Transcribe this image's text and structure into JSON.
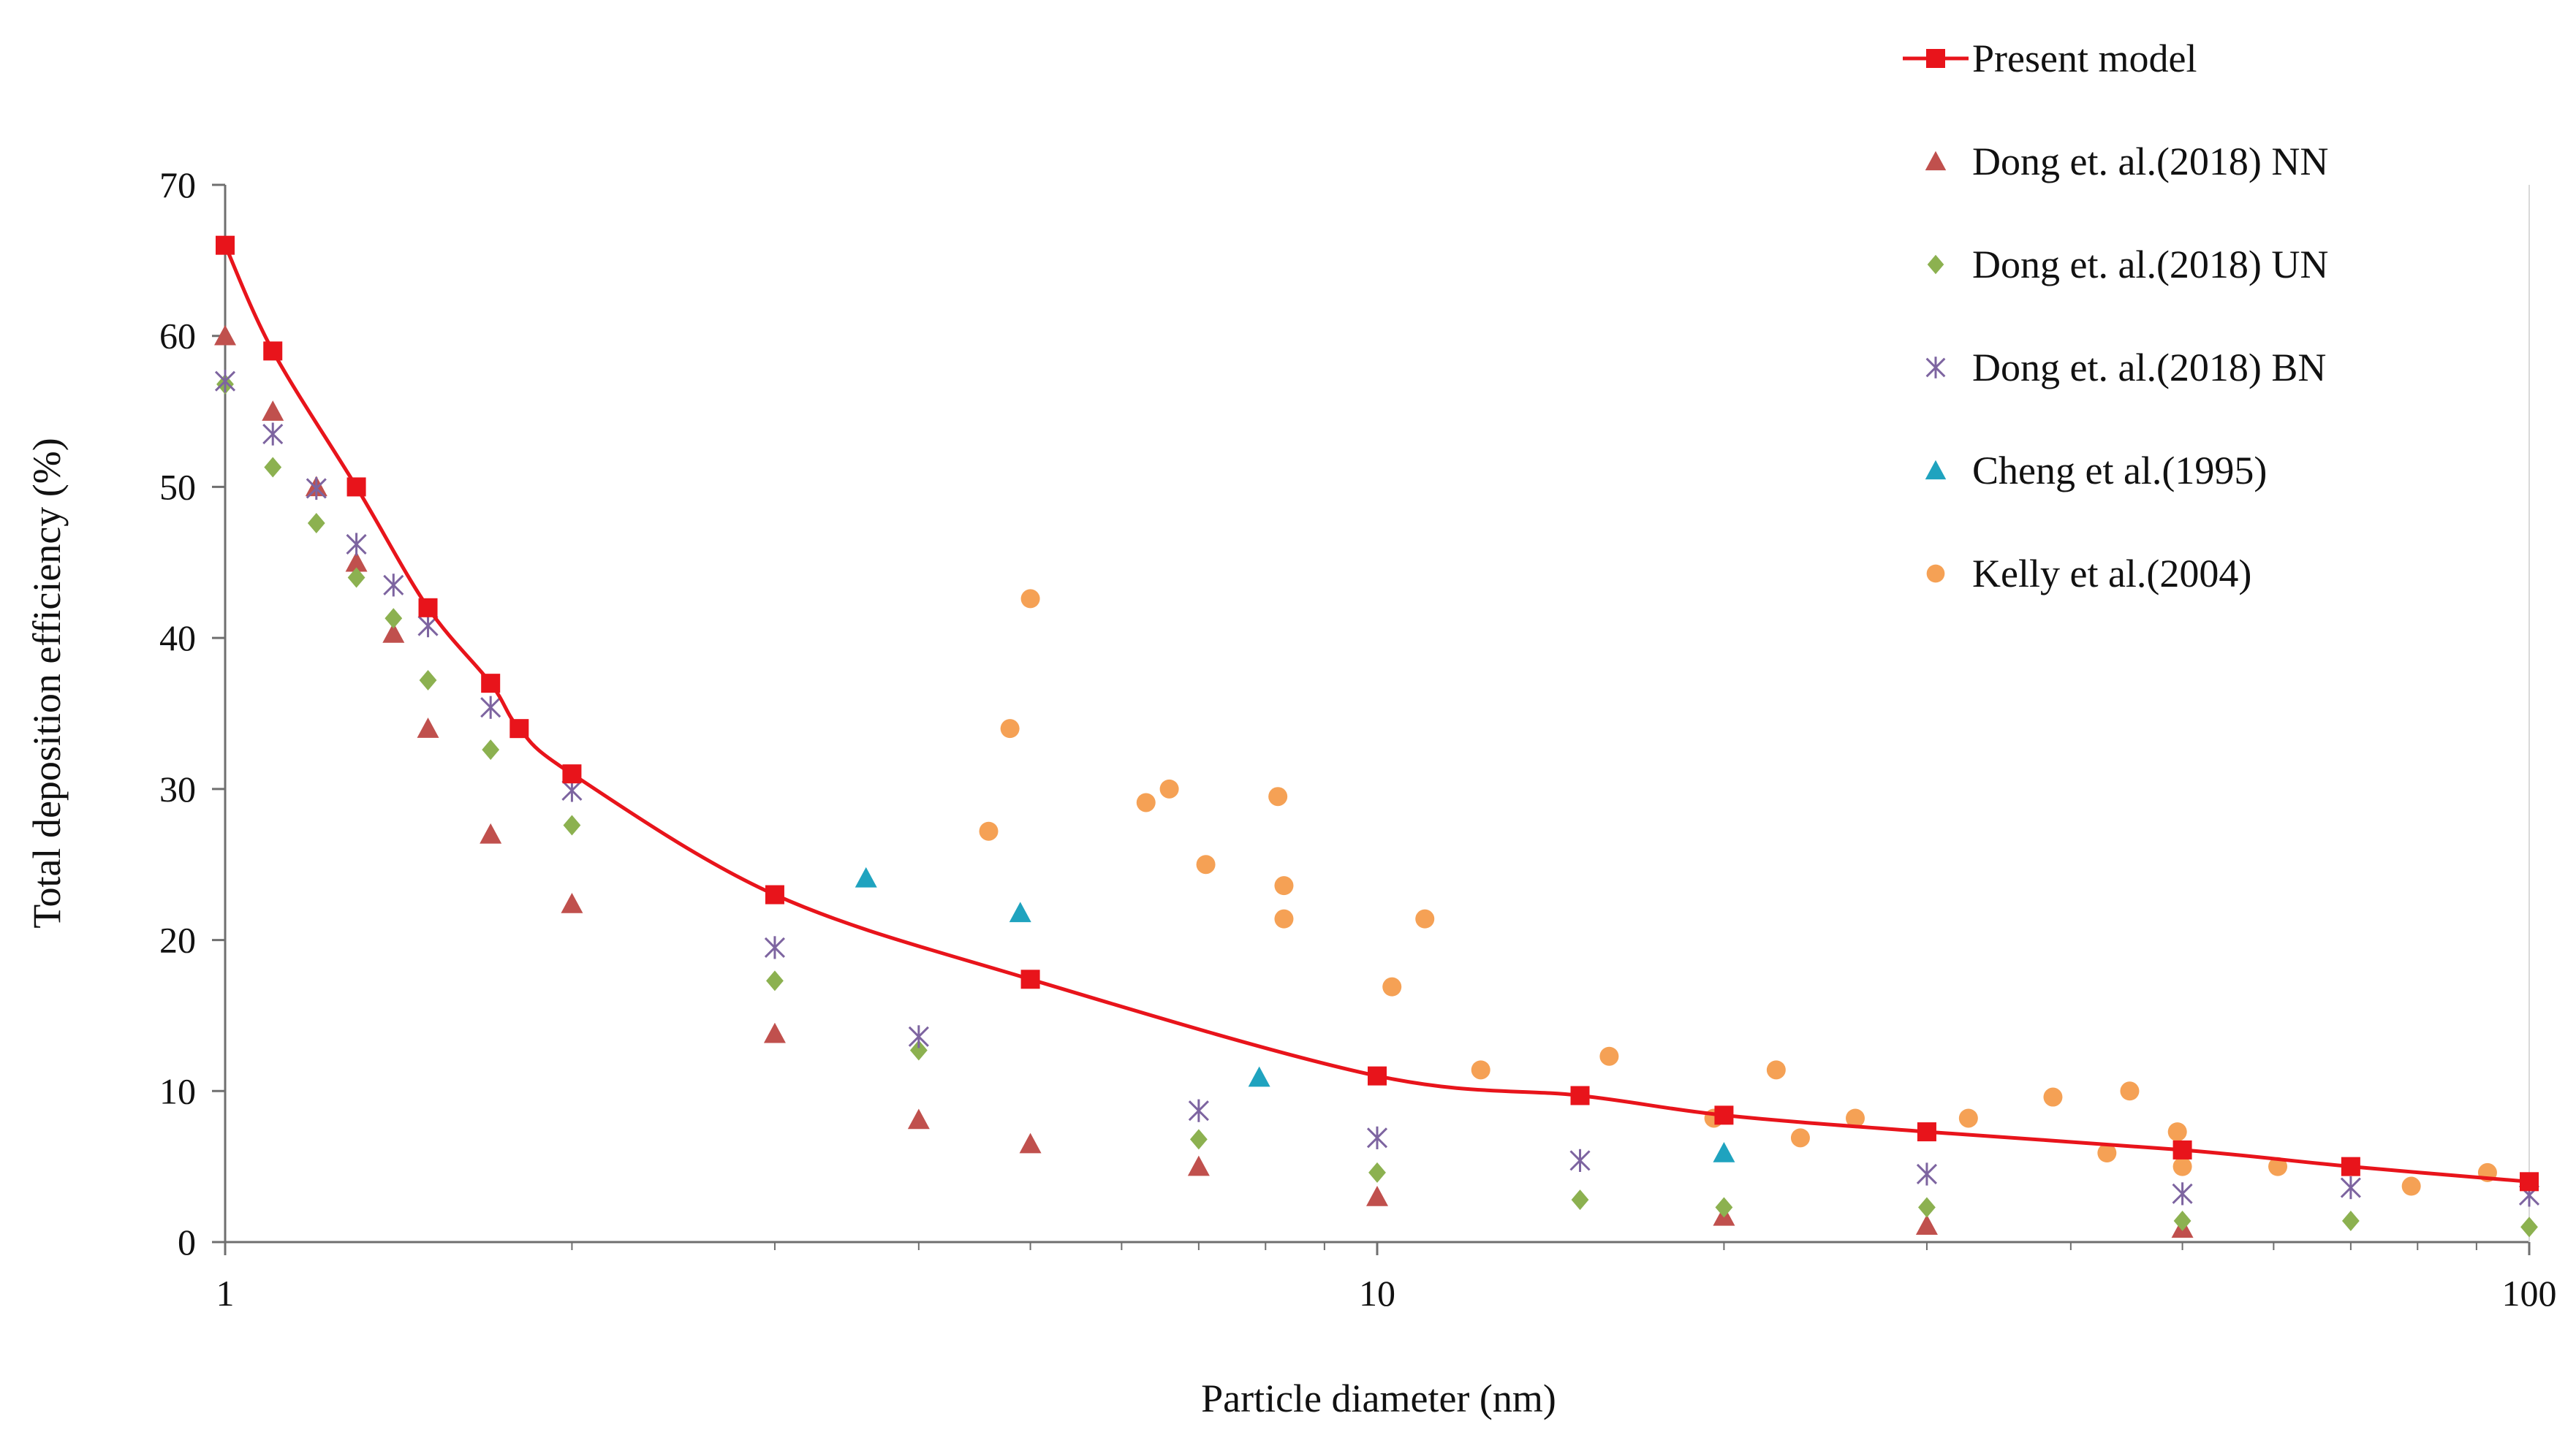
{
  "chart_data": {
    "type": "scatter",
    "title": "",
    "xlabel": "Particle diameter (nm)",
    "ylabel": "Total deposition efficiency (%)",
    "xscale": "log",
    "xlim": [
      1,
      100
    ],
    "ylim": [
      0,
      70
    ],
    "xticks": [
      1,
      10,
      100
    ],
    "xtick_labels": [
      "1",
      "10",
      "100"
    ],
    "yticks": [
      0,
      10,
      20,
      30,
      40,
      50,
      60,
      70
    ],
    "ytick_labels": [
      "0",
      "10",
      "20",
      "30",
      "40",
      "50",
      "60",
      "70"
    ],
    "grid": false,
    "legend_position": "top-right",
    "series": [
      {
        "name": "Present model",
        "marker": "square-line",
        "color": "#e8141b",
        "x": [
          1,
          1.1,
          1.3,
          1.5,
          1.7,
          1.8,
          2,
          3,
          5,
          10,
          15,
          20,
          30,
          50,
          70,
          100
        ],
        "y": [
          66,
          59,
          50,
          42,
          37,
          34,
          31,
          23,
          17.4,
          11,
          9.7,
          8.4,
          7.3,
          6.1,
          5,
          4
        ]
      },
      {
        "name": "Dong et. al.(2018) NN",
        "marker": "triangle",
        "color": "#c0504d",
        "x": [
          1,
          1.1,
          1.2,
          1.3,
          1.4,
          1.5,
          1.7,
          2,
          3,
          4,
          5,
          7,
          10,
          20,
          30,
          50
        ],
        "y": [
          60,
          55,
          50,
          45,
          40.3,
          34,
          27,
          22.4,
          13.8,
          8.1,
          6.5,
          5,
          3,
          1.7,
          1.1,
          0.9
        ]
      },
      {
        "name": "Dong et. al.(2018) UN",
        "marker": "diamond",
        "color": "#8cb150",
        "x": [
          1,
          1.1,
          1.2,
          1.3,
          1.4,
          1.5,
          1.7,
          2,
          3,
          4,
          7,
          10,
          15,
          20,
          30,
          50,
          70,
          100
        ],
        "y": [
          56.8,
          51.3,
          47.6,
          44,
          41.3,
          37.2,
          32.6,
          27.6,
          17.3,
          12.7,
          6.8,
          4.6,
          2.8,
          2.3,
          2.3,
          1.4,
          1.4,
          1
        ]
      },
      {
        "name": "Dong et. al.(2018) BN",
        "marker": "asterisk",
        "color": "#7d64a0",
        "x": [
          1,
          1.1,
          1.2,
          1.3,
          1.4,
          1.5,
          1.7,
          2,
          3,
          4,
          7,
          10,
          15,
          30,
          50,
          70,
          100
        ],
        "y": [
          57,
          53.5,
          49.9,
          46.2,
          43.5,
          40.8,
          35.4,
          29.9,
          19.5,
          13.6,
          8.7,
          6.9,
          5.4,
          4.5,
          3.2,
          3.6,
          3.1
        ]
      },
      {
        "name": "Cheng et al.(1995)",
        "marker": "triangle",
        "color": "#1fa3bf",
        "x": [
          3.6,
          4.9,
          7.9,
          20
        ],
        "y": [
          24.1,
          21.8,
          10.9,
          5.9
        ]
      },
      {
        "name": "Kelly et al.(2004)",
        "marker": "circle",
        "color": "#f5a155",
        "x": [
          4.6,
          4.8,
          5,
          6.3,
          6.6,
          7.1,
          8.2,
          8.3,
          8.3,
          10.3,
          11,
          12.3,
          15.9,
          19.6,
          22.2,
          23.3,
          26,
          32.6,
          38.6,
          43,
          45,
          49.5,
          50,
          60.5,
          79,
          92
        ],
        "y": [
          27.2,
          34,
          42.6,
          29.1,
          30,
          25,
          29.5,
          23.6,
          21.4,
          16.9,
          21.4,
          11.4,
          12.3,
          8.2,
          11.4,
          6.9,
          8.2,
          8.2,
          9.6,
          5.9,
          10,
          7.3,
          5,
          5,
          3.7,
          4.6
        ]
      }
    ]
  }
}
